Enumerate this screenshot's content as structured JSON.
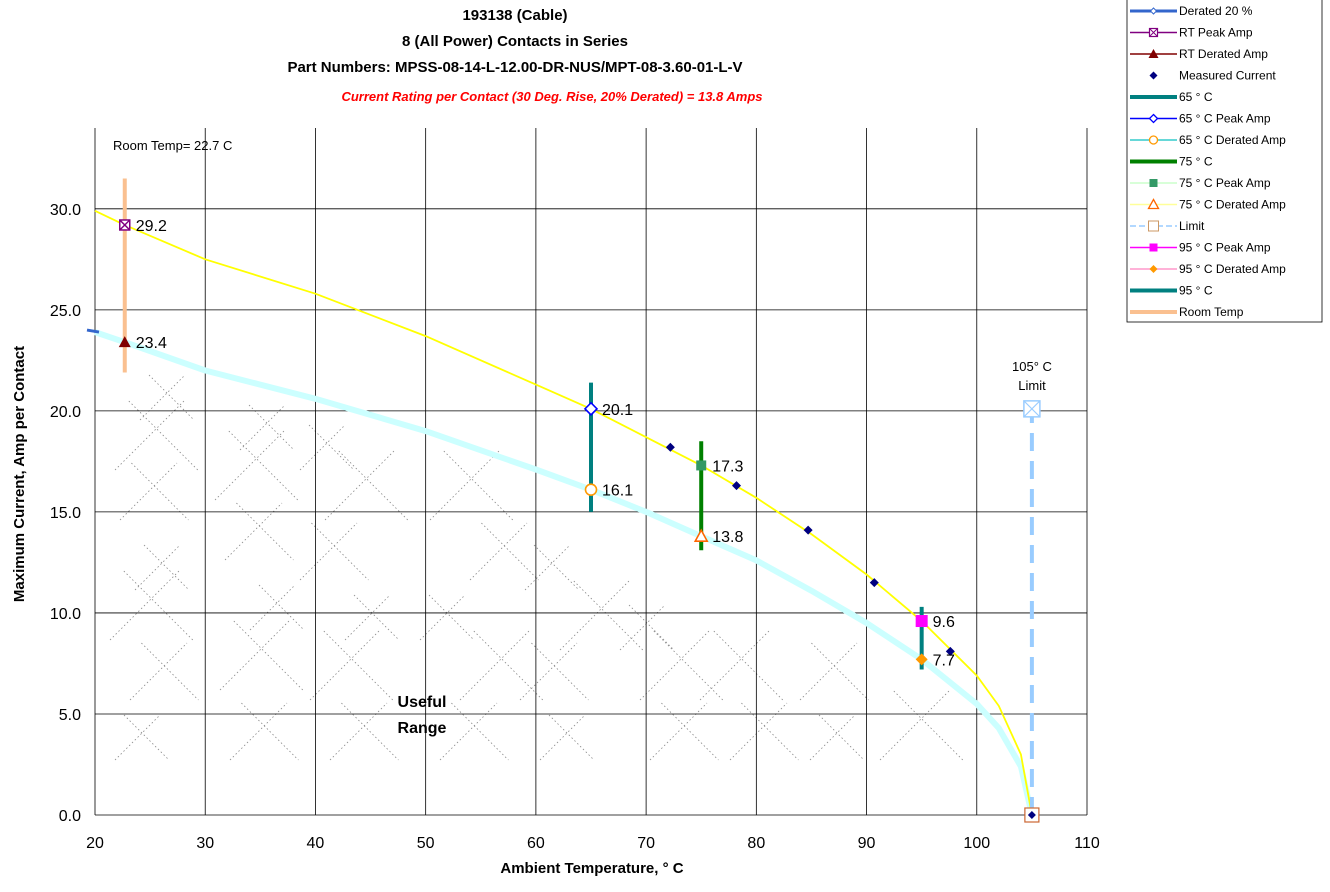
{
  "chart_data": {
    "type": "line",
    "title": [
      "193138 (Cable)",
      "8 (All Power) Contacts in Series",
      "Part Numbers: MPSS-08-14-L-12.00-DR-NUS/MPT-08-3.60-01-L-V"
    ],
    "subtitle": "Current Rating per Contact (30 Deg. Rise, 20% Derated)  = 13.8 Amps",
    "xlabel": "Ambient Temperature,  ° C",
    "ylabel": "Maximum Current, Amp per Contact",
    "xlim": [
      20,
      110
    ],
    "ylim": [
      0,
      34
    ],
    "xticks": [
      20,
      30,
      40,
      50,
      60,
      70,
      80,
      90,
      100,
      110
    ],
    "xtick_labels": [
      "20",
      "30",
      "40",
      "50",
      "60",
      "70",
      "80",
      "90",
      "100",
      "110"
    ],
    "yticks": [
      0,
      5,
      10,
      15,
      20,
      25,
      30
    ],
    "ytick_labels": [
      "0.0",
      "5.0",
      "10.0",
      "15.0",
      "20.0",
      "25.0",
      "30.0"
    ],
    "grid": true,
    "legend_position": "top-right, outside plot",
    "curves": {
      "peak": {
        "color": "#ffff00",
        "points": [
          [
            20,
            29.9
          ],
          [
            22.7,
            29.2
          ],
          [
            30,
            27.5
          ],
          [
            40,
            25.8
          ],
          [
            50,
            23.7
          ],
          [
            60,
            21.3
          ],
          [
            65,
            20.1
          ],
          [
            70,
            18.7
          ],
          [
            75,
            17.3
          ],
          [
            80,
            15.7
          ],
          [
            85,
            13.9
          ],
          [
            90,
            11.9
          ],
          [
            95,
            9.6
          ],
          [
            100,
            6.9
          ],
          [
            102,
            5.4
          ],
          [
            104,
            3.0
          ],
          [
            105,
            0
          ]
        ]
      },
      "derated": {
        "color": "#ccffff",
        "points": [
          [
            20,
            23.9
          ],
          [
            22.7,
            23.4
          ],
          [
            30,
            22.0
          ],
          [
            40,
            20.6
          ],
          [
            50,
            19.0
          ],
          [
            60,
            17.1
          ],
          [
            65,
            16.1
          ],
          [
            70,
            15.0
          ],
          [
            75,
            13.8
          ],
          [
            80,
            12.6
          ],
          [
            85,
            11.1
          ],
          [
            90,
            9.5
          ],
          [
            95,
            7.7
          ],
          [
            100,
            5.5
          ],
          [
            102,
            4.3
          ],
          [
            104,
            2.4
          ],
          [
            105,
            0
          ]
        ]
      }
    },
    "measured_current": [
      [
        72.2,
        18.2
      ],
      [
        78.2,
        16.3
      ],
      [
        84.7,
        14.1
      ],
      [
        90.7,
        11.5
      ],
      [
        97.6,
        8.1
      ],
      [
        105,
        0
      ]
    ],
    "markers": [
      {
        "name": "RT Peak Amp",
        "x": 22.7,
        "y": 29.2,
        "label": "29.2"
      },
      {
        "name": "RT Derated Amp",
        "x": 22.7,
        "y": 23.4,
        "label": "23.4"
      },
      {
        "name": "65 ° C Peak Amp",
        "x": 65,
        "y": 20.1,
        "label": "20.1"
      },
      {
        "name": "65 ° C Derated Amp",
        "x": 65,
        "y": 16.1,
        "label": "16.1"
      },
      {
        "name": "75 ° C Peak Amp",
        "x": 75,
        "y": 17.3,
        "label": "17.3"
      },
      {
        "name": "75 ° C Derated Amp",
        "x": 75,
        "y": 13.8,
        "label": "13.8"
      },
      {
        "name": "95 ° C Peak Amp",
        "x": 95,
        "y": 9.6,
        "label": "9.6"
      },
      {
        "name": "95 ° C Derated Amp",
        "x": 95,
        "y": 7.7,
        "label": "7.7"
      },
      {
        "name": "Limit",
        "x": 105,
        "y": 20.1,
        "label": ""
      }
    ],
    "vertical_bars": [
      {
        "name": "Room Temp",
        "x": 22.7,
        "y": [
          21.9,
          31.5
        ],
        "color": "#fac090"
      },
      {
        "name": "65 ° C",
        "x": 65,
        "y": [
          15.0,
          21.4
        ],
        "color": "#008080"
      },
      {
        "name": "75 ° C",
        "x": 75,
        "y": [
          13.1,
          18.5
        ],
        "color": "#008000"
      },
      {
        "name": "95 ° C",
        "x": 95,
        "y": [
          7.2,
          10.3
        ],
        "color": "#008080"
      },
      {
        "name": "Limit",
        "x": 105,
        "y": [
          0,
          20.1
        ],
        "color": "#99ccff"
      }
    ],
    "annotations": {
      "room_temp": "Room Temp= 22.7 C",
      "limit_line1": "105° C",
      "limit_line2": "Limit",
      "useful_line1": "Useful",
      "useful_line2": "Range"
    },
    "legend": [
      {
        "label": "Derated 20 %",
        "color": "#3366cc",
        "marker": "diamond-small"
      },
      {
        "label": "RT Peak Amp",
        "color": "#800080",
        "marker": "square-x"
      },
      {
        "label": "RT Derated Amp",
        "color": "#800000",
        "marker": "triangle-filled"
      },
      {
        "label": "Measured Current",
        "color": "#000080",
        "marker": "diamond-filled-nolines"
      },
      {
        "label": "65 ° C",
        "color": "#008080",
        "marker": "thick-line"
      },
      {
        "label": "65  ° C Peak Amp",
        "color": "#0000ff",
        "marker": "diamond-open"
      },
      {
        "label": "65  ° C Derated Amp",
        "color": "#33cccc",
        "marker": "circle-open"
      },
      {
        "label": "75  ° C",
        "color": "#008000",
        "marker": "thick-line"
      },
      {
        "label": "75  ° C Peak Amp",
        "color": "#ccffcc",
        "marker": "square-filled"
      },
      {
        "label": "75  ° C Derated Amp",
        "color": "#ffff99",
        "marker": "triangle-open"
      },
      {
        "label": "Limit",
        "color": "#99ccff",
        "marker": "square-open"
      },
      {
        "label": "95  ° C Peak Amp",
        "color": "#ff00ff",
        "marker": "square-filled"
      },
      {
        "label": "95  ° C Derated Amp",
        "color": "#ff99cc",
        "marker": "diamond-filled"
      },
      {
        "label": "95  ° C",
        "color": "#008080",
        "marker": "thick-line"
      },
      {
        "label": "Room Temp",
        "color": "#fac090",
        "marker": "thick-line"
      }
    ]
  }
}
